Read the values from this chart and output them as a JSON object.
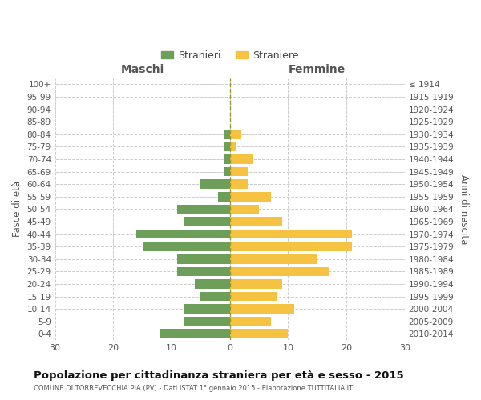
{
  "age_groups": [
    "100+",
    "95-99",
    "90-94",
    "85-89",
    "80-84",
    "75-79",
    "70-74",
    "65-69",
    "60-64",
    "55-59",
    "50-54",
    "45-49",
    "40-44",
    "35-39",
    "30-34",
    "25-29",
    "20-24",
    "15-19",
    "10-14",
    "5-9",
    "0-4"
  ],
  "birth_years": [
    "≤ 1914",
    "1915-1919",
    "1920-1924",
    "1925-1929",
    "1930-1934",
    "1935-1939",
    "1940-1944",
    "1945-1949",
    "1950-1954",
    "1955-1959",
    "1960-1964",
    "1965-1969",
    "1970-1974",
    "1975-1979",
    "1980-1984",
    "1985-1989",
    "1990-1994",
    "1995-1999",
    "2000-2004",
    "2005-2009",
    "2010-2014"
  ],
  "maschi": [
    0,
    0,
    0,
    0,
    1,
    1,
    1,
    1,
    5,
    2,
    9,
    8,
    16,
    15,
    9,
    9,
    6,
    5,
    8,
    8,
    12
  ],
  "femmine": [
    0,
    0,
    0,
    0,
    2,
    1,
    4,
    3,
    3,
    7,
    5,
    9,
    21,
    21,
    15,
    17,
    9,
    8,
    11,
    7,
    10
  ],
  "male_color": "#6d9e5a",
  "female_color": "#f5c242",
  "male_label": "Stranieri",
  "female_label": "Straniere",
  "xlim": 30,
  "title": "Popolazione per cittadinanza straniera per età e sesso - 2015",
  "subtitle": "COMUNE DI TORREVECCHIA PIA (PV) - Dati ISTAT 1° gennaio 2015 - Elaborazione TUTTITALIA.IT",
  "xlabel_left": "Maschi",
  "xlabel_right": "Femmine",
  "ylabel_left": "Fasce di età",
  "ylabel_right": "Anni di nascita",
  "bg_color": "#ffffff",
  "grid_color": "#cccccc"
}
